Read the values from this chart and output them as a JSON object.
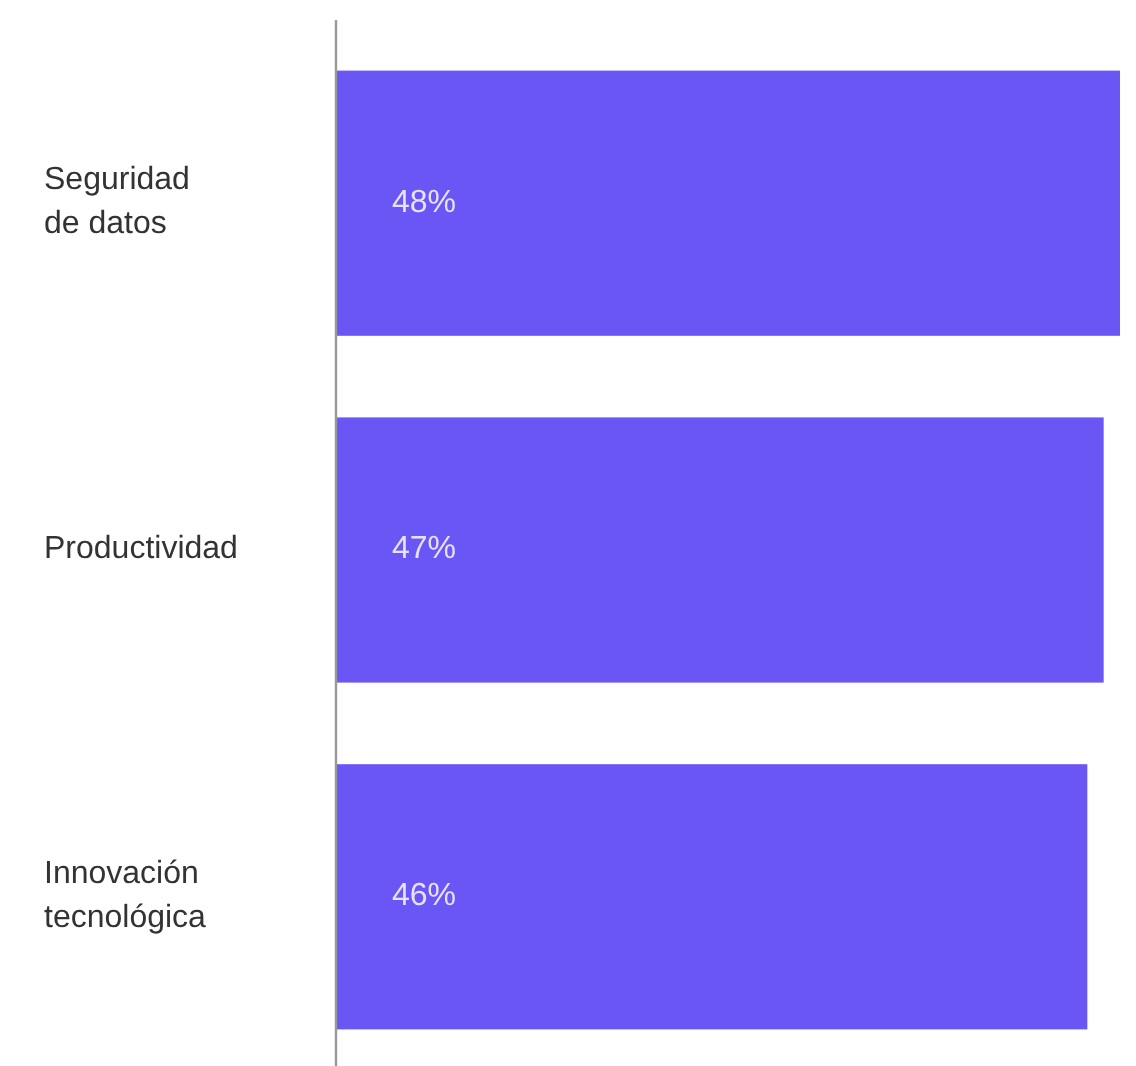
{
  "chart_data": {
    "type": "bar",
    "orientation": "horizontal",
    "categories": [
      "Seguridad de datos",
      "Productividad",
      "Innovación tecnológica"
    ],
    "values": [
      48,
      47,
      46
    ],
    "value_labels": [
      "48%",
      "47%",
      "46%"
    ],
    "color": "#6a55f5"
  }
}
